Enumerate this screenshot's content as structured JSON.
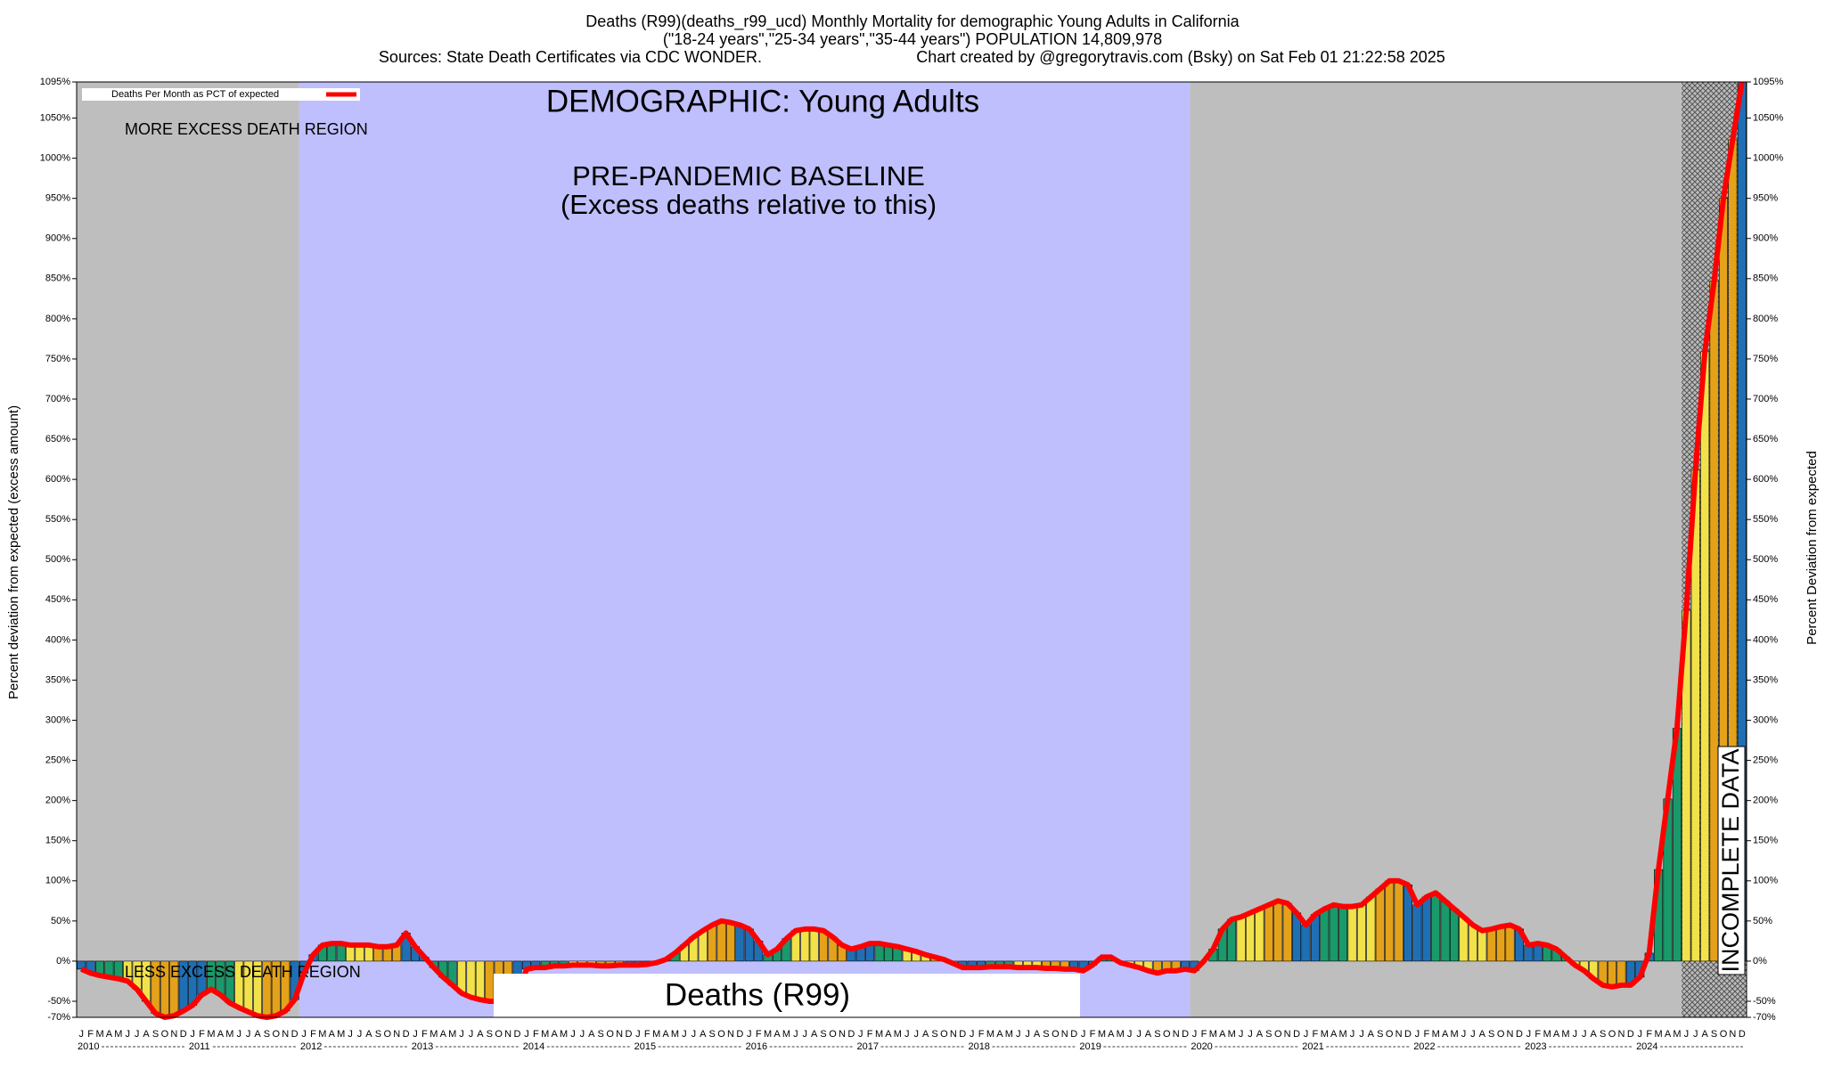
{
  "chart_data": {
    "type": "bar",
    "title": "Deaths (R99)(deaths_r99_ucd) Monthly Mortality for demographic Young Adults in California",
    "subtitle": "(\"18-24 years\",\"25-34 years\",\"35-44 years\") POPULATION 14,809,978",
    "source": "Sources: State Death Certificates via CDC WONDER.",
    "credit": "Chart created by @gregorytravis.com (Bsky) on Sat Feb 01 21:22:58 2025",
    "ylabel": "Percent deviation from expected (excess amount)",
    "y2label": "Percent Deviation from expected",
    "annotations": {
      "demographic": "DEMOGRAPHIC: Young Adults",
      "more": "MORE EXCESS DEATH REGION",
      "less": "LESS EXCESS DEATH REGION",
      "baseline": "PRE-PANDEMIC BASELINE",
      "baseline_note": "(Excess deaths relative to this)",
      "cause": "Deaths (R99)",
      "incomplete": "INCOMPLETE DATA"
    },
    "years": [
      "2010",
      "2011",
      "2012",
      "2013",
      "2014",
      "2015",
      "2016",
      "2017",
      "2018",
      "2019",
      "2020",
      "2021",
      "2022",
      "2023",
      "2024"
    ],
    "month_letters": [
      "J",
      "F",
      "M",
      "A",
      "M",
      "J",
      "J",
      "A",
      "S",
      "O",
      "N",
      "D"
    ],
    "month_colors": [
      "#1f6fb5",
      "#1f6fb5",
      "#1a9a6a",
      "#1a9a6a",
      "#1a9a6a",
      "#f2e24a",
      "#f2e24a",
      "#f2e24a",
      "#e3a21a",
      "#e3a21a",
      "#e3a21a",
      "#1f6fb5"
    ],
    "series": [
      {
        "name": "Deaths Per Month as PCT of expected",
        "color": "#ff0000",
        "values": [
          -10,
          -15,
          -18,
          -20,
          -22,
          -25,
          -35,
          -50,
          -65,
          -70,
          -68,
          -62,
          -55,
          -42,
          -35,
          -42,
          -52,
          -58,
          -63,
          -68,
          -70,
          -68,
          -62,
          -48,
          -15,
          8,
          20,
          22,
          22,
          20,
          20,
          20,
          18,
          18,
          20,
          35,
          18,
          5,
          -8,
          -20,
          -30,
          -40,
          -45,
          -48,
          -50,
          -50,
          -48,
          -45,
          -10,
          -8,
          -8,
          -6,
          -6,
          -5,
          -5,
          -5,
          -6,
          -6,
          -5,
          -5,
          -5,
          -4,
          -2,
          2,
          10,
          20,
          30,
          38,
          45,
          50,
          48,
          45,
          40,
          25,
          8,
          15,
          28,
          38,
          40,
          40,
          38,
          30,
          20,
          15,
          18,
          22,
          22,
          20,
          18,
          15,
          12,
          8,
          5,
          2,
          -3,
          -8,
          -8,
          -8,
          -7,
          -7,
          -7,
          -8,
          -8,
          -8,
          -9,
          -9,
          -10,
          -10,
          -12,
          -5,
          5,
          5,
          -2,
          -5,
          -8,
          -12,
          -15,
          -12,
          -12,
          -10,
          -12,
          0,
          15,
          40,
          52,
          55,
          60,
          65,
          70,
          75,
          72,
          60,
          45,
          58,
          65,
          70,
          68,
          68,
          70,
          80,
          90,
          100,
          100,
          95,
          70,
          80,
          85,
          75,
          65,
          55,
          45,
          38,
          40,
          43,
          45,
          40,
          20,
          22,
          20,
          15,
          5,
          -5,
          -12,
          -22,
          -30,
          -32,
          -30,
          -30,
          -20,
          10,
          114,
          202,
          290,
          437,
          612,
          759,
          847,
          950,
          1023,
          1095
        ]
      }
    ],
    "ylim": [
      -70,
      1095
    ],
    "yticks": [
      {
        "value": -70,
        "label": "-70%"
      },
      {
        "value": -50,
        "label": "-50%"
      },
      {
        "value": 0,
        "label": "0%"
      },
      {
        "value": 50,
        "label": "50%"
      },
      {
        "value": 100,
        "label": "100%"
      },
      {
        "value": 150,
        "label": "150%"
      },
      {
        "value": 200,
        "label": "200%"
      },
      {
        "value": 250,
        "label": "250%"
      },
      {
        "value": 300,
        "label": "300%"
      },
      {
        "value": 350,
        "label": "350%"
      },
      {
        "value": 400,
        "label": "400%"
      },
      {
        "value": 450,
        "label": "450%"
      },
      {
        "value": 500,
        "label": "500%"
      },
      {
        "value": 550,
        "label": "550%"
      },
      {
        "value": 600,
        "label": "600%"
      },
      {
        "value": 650,
        "label": "650%"
      },
      {
        "value": 700,
        "label": "700%"
      },
      {
        "value": 750,
        "label": "750%"
      },
      {
        "value": 800,
        "label": "800%"
      },
      {
        "value": 850,
        "label": "850%"
      },
      {
        "value": 900,
        "label": "900%"
      },
      {
        "value": 950,
        "label": "950%"
      },
      {
        "value": 1000,
        "label": "1000%"
      },
      {
        "value": 1050,
        "label": "1050%"
      },
      {
        "value": 1095,
        "label": "1095%"
      }
    ]
  }
}
